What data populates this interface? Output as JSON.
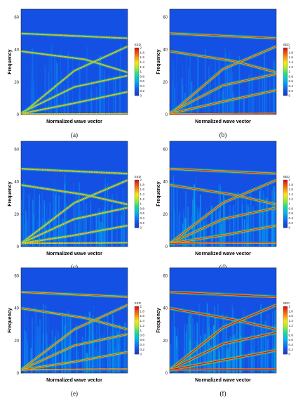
{
  "chart_data": [
    {
      "panel": "(a)",
      "type": "heatmap",
      "xlabel": "Normalized wave vector",
      "ylabel": "Frequency",
      "yticks": [
        "0",
        "20",
        "40",
        "60"
      ],
      "ylim": [
        0,
        65
      ],
      "xlim": [
        0,
        1
      ],
      "colorbar_title": "SED",
      "colorbar_ticks": [
        "2",
        "1.8",
        "1.6",
        "1.4",
        "1.2",
        "1",
        "0.8",
        "0.6",
        "0.4",
        "0.2",
        "0"
      ],
      "colorbar_range": [
        0,
        2
      ],
      "intensity": 0.45,
      "noise": 0.2,
      "branches": [
        {
          "name": "",
          "x": [
            0,
            1
          ],
          "y": [
            50,
            47
          ]
        },
        {
          "name": "",
          "x": [
            0,
            0.6,
            1
          ],
          "y": [
            39,
            34,
            26
          ]
        },
        {
          "name": "",
          "x": [
            0,
            0.5,
            1
          ],
          "y": [
            0,
            27,
            42
          ]
        },
        {
          "name": "",
          "x": [
            0,
            0.5,
            1
          ],
          "y": [
            1,
            17,
            24
          ]
        },
        {
          "name": "",
          "x": [
            0,
            0.5,
            1
          ],
          "y": [
            0.5,
            7,
            14
          ]
        },
        {
          "name": "",
          "x": [
            0,
            1
          ],
          "y": [
            0.3,
            0.6
          ]
        }
      ]
    },
    {
      "panel": "(b)",
      "type": "heatmap",
      "xlabel": "Normalized wave vector",
      "ylabel": "Frequency",
      "yticks": [
        "0",
        "20",
        "40",
        "60"
      ],
      "ylim": [
        0,
        65
      ],
      "xlim": [
        0,
        1
      ],
      "colorbar_title": "SED",
      "colorbar_ticks": [
        "2",
        "1.8",
        "1.6",
        "1.4",
        "1.2",
        "1",
        "0.8",
        "0.6",
        "0.4",
        "0.2",
        "0"
      ],
      "colorbar_range": [
        0,
        2
      ],
      "intensity": 0.75,
      "noise": 0.25,
      "branches": [
        {
          "name": "",
          "x": [
            0,
            1
          ],
          "y": [
            50,
            47
          ]
        },
        {
          "name": "",
          "x": [
            0,
            0.6,
            1
          ],
          "y": [
            39,
            33,
            26
          ]
        },
        {
          "name": "",
          "x": [
            0,
            0.5,
            1
          ],
          "y": [
            0,
            28,
            42
          ]
        },
        {
          "name": "",
          "x": [
            0,
            0.5,
            1
          ],
          "y": [
            1,
            18,
            25
          ]
        },
        {
          "name": "",
          "x": [
            0,
            0.5,
            1
          ],
          "y": [
            0.5,
            8,
            15
          ]
        },
        {
          "name": "",
          "x": [
            0,
            1
          ],
          "y": [
            0.3,
            0.6
          ]
        }
      ]
    },
    {
      "panel": "(c)",
      "type": "heatmap",
      "xlabel": "Normalized wave vector",
      "ylabel": "Frequency",
      "yticks": [
        "0",
        "20",
        "40",
        "60"
      ],
      "ylim": [
        0,
        65
      ],
      "xlim": [
        0,
        1
      ],
      "colorbar_title": "SED",
      "colorbar_ticks": [
        "2",
        "1.8",
        "1.6",
        "1.4",
        "1.2",
        "1",
        "0.8",
        "0.6",
        "0.4",
        "0.2",
        "0"
      ],
      "colorbar_range": [
        0,
        2
      ],
      "intensity": 0.55,
      "noise": 0.45,
      "branches": [
        {
          "name": "",
          "x": [
            0,
            1
          ],
          "y": [
            48,
            45
          ]
        },
        {
          "name": "",
          "x": [
            0,
            0.6,
            1
          ],
          "y": [
            38,
            32,
            26
          ]
        },
        {
          "name": "",
          "x": [
            0,
            0.5,
            1
          ],
          "y": [
            2,
            27,
            41
          ]
        },
        {
          "name": "",
          "x": [
            0,
            0.5,
            1
          ],
          "y": [
            2,
            17,
            24
          ]
        },
        {
          "name": "",
          "x": [
            0,
            0.5,
            1
          ],
          "y": [
            2,
            7,
            13
          ]
        },
        {
          "name": "",
          "x": [
            0,
            1
          ],
          "y": [
            2,
            2.5
          ]
        }
      ]
    },
    {
      "panel": "(d)",
      "type": "heatmap",
      "xlabel": "Normalized wave vector",
      "ylabel": "Frequency",
      "yticks": [
        "0",
        "20",
        "40",
        "60"
      ],
      "ylim": [
        0,
        65
      ],
      "xlim": [
        0,
        1
      ],
      "colorbar_title": "SED",
      "colorbar_ticks": [
        "2",
        "1.8",
        "1.6",
        "1.4",
        "1.2",
        "1",
        "0.8",
        "0.6",
        "0.4",
        "0.2",
        "0"
      ],
      "colorbar_range": [
        0,
        2
      ],
      "intensity": 0.8,
      "noise": 0.55,
      "branches": [
        {
          "name": "",
          "x": [
            0,
            1
          ],
          "y": [
            48,
            45
          ]
        },
        {
          "name": "",
          "x": [
            0,
            0.6,
            1
          ],
          "y": [
            38,
            32,
            26
          ]
        },
        {
          "name": "",
          "x": [
            0,
            0.5,
            1
          ],
          "y": [
            2,
            27,
            41
          ]
        },
        {
          "name": "",
          "x": [
            0,
            0.5,
            1
          ],
          "y": [
            2,
            17,
            24
          ]
        },
        {
          "name": "",
          "x": [
            0,
            0.5,
            1
          ],
          "y": [
            2,
            7,
            13
          ]
        },
        {
          "name": "",
          "x": [
            0,
            1
          ],
          "y": [
            2,
            2.5
          ]
        }
      ]
    },
    {
      "panel": "(e)",
      "type": "heatmap",
      "xlabel": "Normalized wave vector",
      "ylabel": "Frequency",
      "yticks": [
        "0",
        "20",
        "40",
        "60"
      ],
      "ylim": [
        0,
        65
      ],
      "xlim": [
        0,
        1
      ],
      "colorbar_title": "SED",
      "colorbar_ticks": [
        "2",
        "1.8",
        "1.6",
        "1.4",
        "1.2",
        "1",
        "0.8",
        "0.6",
        "0.4",
        "0.2",
        "0"
      ],
      "colorbar_range": [
        0,
        2
      ],
      "intensity": 0.65,
      "noise": 0.5,
      "branches": [
        {
          "name": "",
          "x": [
            0,
            1
          ],
          "y": [
            50,
            47
          ]
        },
        {
          "name": "",
          "x": [
            0,
            0.6,
            1
          ],
          "y": [
            40,
            34,
            27
          ]
        },
        {
          "name": "",
          "x": [
            0,
            0.5,
            1
          ],
          "y": [
            2,
            27,
            42
          ]
        },
        {
          "name": "",
          "x": [
            0,
            0.5,
            1
          ],
          "y": [
            2,
            17,
            24
          ]
        },
        {
          "name": "",
          "x": [
            0,
            0.5,
            1
          ],
          "y": [
            2,
            7,
            13
          ]
        },
        {
          "name": "",
          "x": [
            0,
            1
          ],
          "y": [
            2,
            2.5
          ]
        }
      ]
    },
    {
      "panel": "(f)",
      "type": "heatmap",
      "xlabel": "Normalized wave vector",
      "ylabel": "Frequency",
      "yticks": [
        "0",
        "20",
        "40",
        "60"
      ],
      "ylim": [
        0,
        65
      ],
      "xlim": [
        0,
        1
      ],
      "colorbar_title": "SED",
      "colorbar_ticks": [
        "2",
        "1.8",
        "1.6",
        "1.4",
        "1.2",
        "1",
        "0.8",
        "0.6",
        "0.4",
        "0.2",
        "0"
      ],
      "colorbar_range": [
        0,
        2
      ],
      "intensity": 1.0,
      "noise": 0.65,
      "branches": [
        {
          "name": "",
          "x": [
            0,
            1
          ],
          "y": [
            50,
            47
          ]
        },
        {
          "name": "",
          "x": [
            0,
            0.6,
            1
          ],
          "y": [
            40,
            33,
            27
          ]
        },
        {
          "name": "",
          "x": [
            0,
            0.5,
            1
          ],
          "y": [
            2,
            28,
            42
          ]
        },
        {
          "name": "",
          "x": [
            0,
            0.5,
            1
          ],
          "y": [
            2,
            18,
            25
          ]
        },
        {
          "name": "",
          "x": [
            0,
            0.5,
            1
          ],
          "y": [
            2,
            8,
            14
          ]
        },
        {
          "name": "",
          "x": [
            0,
            1
          ],
          "y": [
            2,
            2.5
          ]
        }
      ]
    }
  ]
}
